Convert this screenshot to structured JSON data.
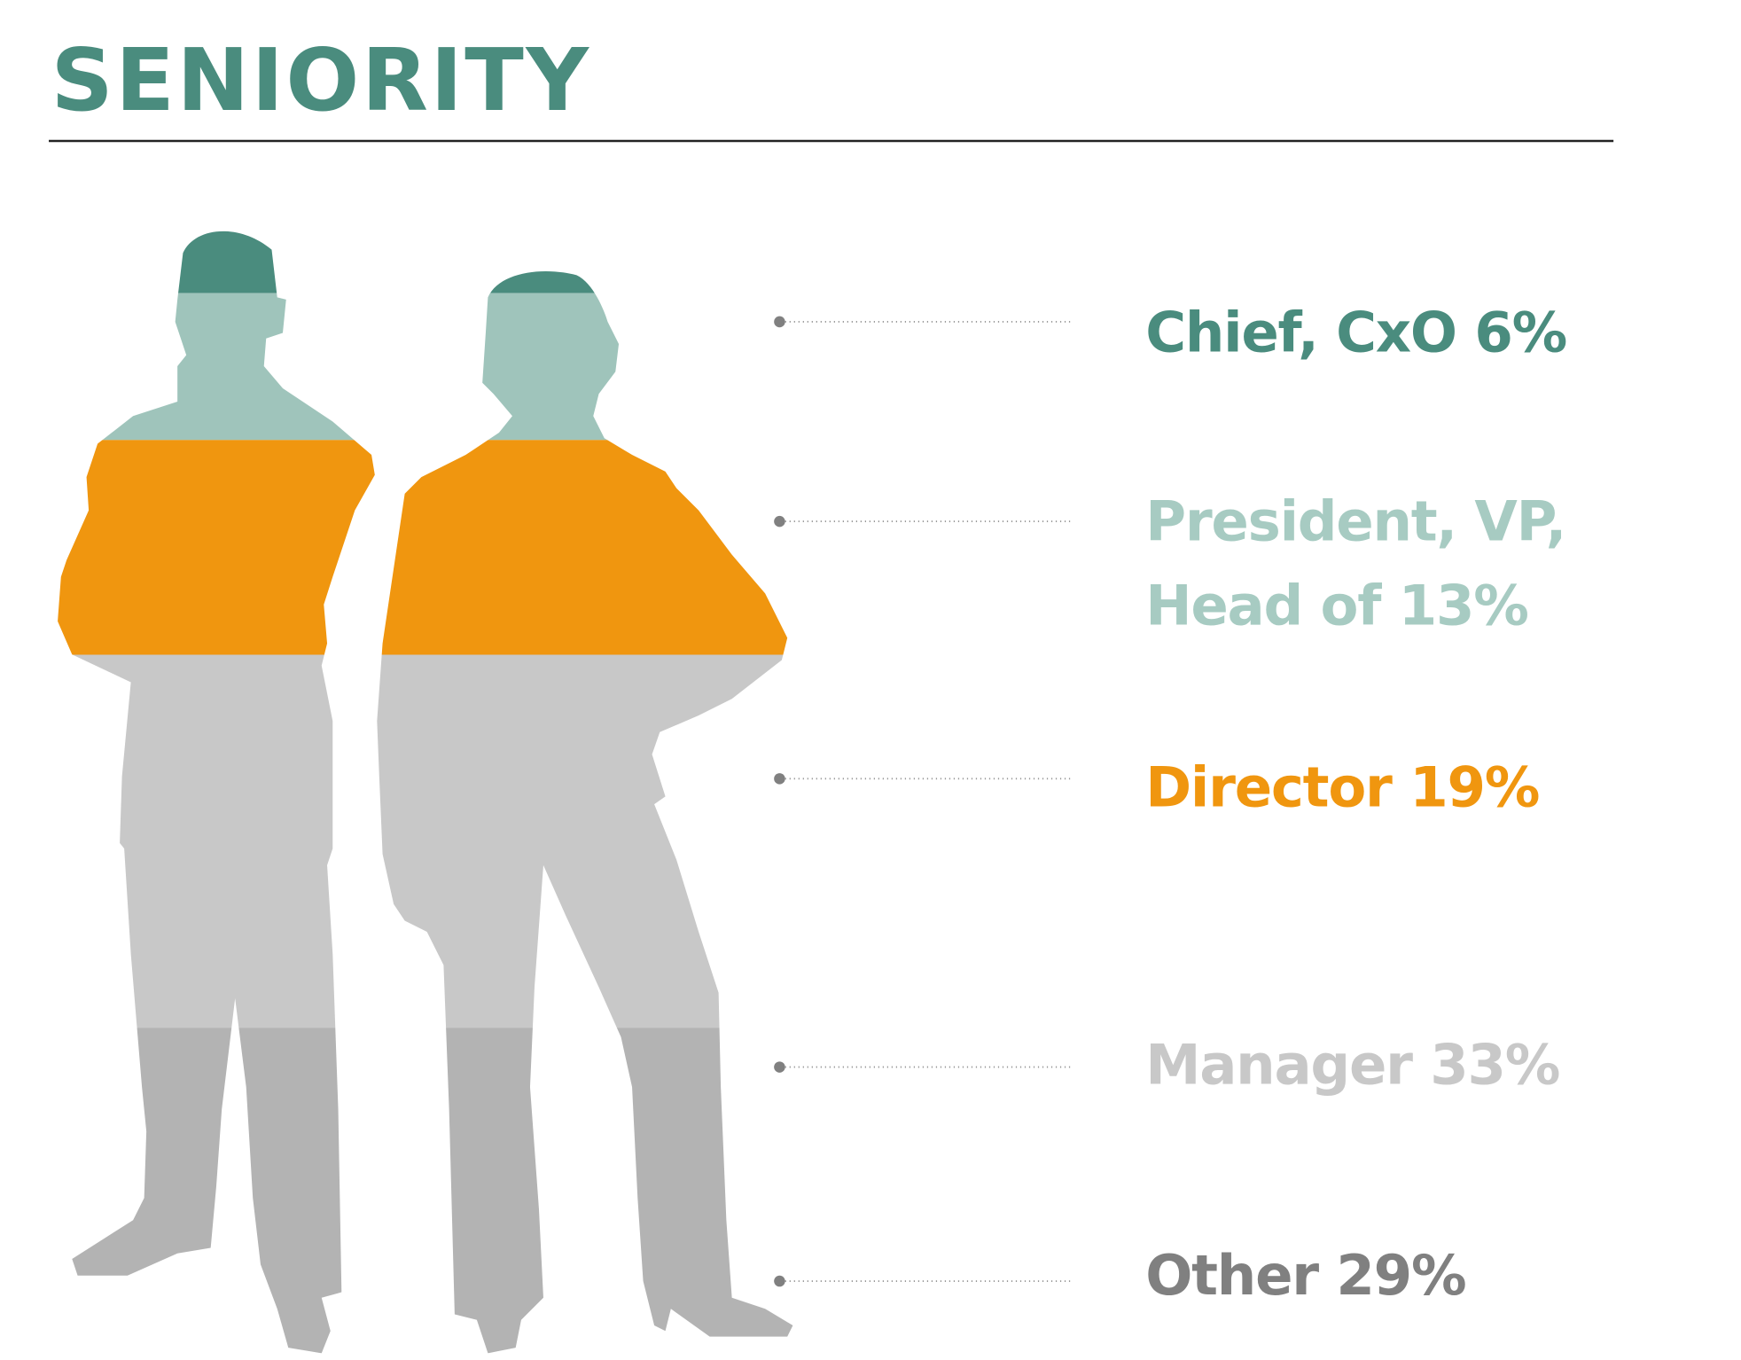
{
  "chart_data": {
    "type": "stacked-silhouette",
    "title": "SENIORITY",
    "categories": [
      "Chief, CxO",
      "President, VP, Head of",
      "Director",
      "Manager",
      "Other"
    ],
    "values": [
      6,
      13,
      19,
      33,
      29
    ],
    "value_labels": [
      "6%",
      "13%",
      "19%",
      "33%",
      "29%"
    ],
    "colors": [
      "#4a8c7e",
      "#9fc4bb",
      "#f0960f",
      "#c8c8c8",
      "#b3b3b3"
    ],
    "label_colors": [
      "#4a8c7e",
      "#a7cbc2",
      "#f0960f",
      "#c8c8c8",
      "#808080"
    ]
  }
}
